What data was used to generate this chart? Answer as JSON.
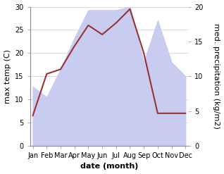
{
  "months": [
    "Jan",
    "Feb",
    "Mar",
    "Apr",
    "May",
    "Jun",
    "Jul",
    "Aug",
    "Sep",
    "Oct",
    "Nov",
    "Dec"
  ],
  "x": [
    0,
    1,
    2,
    3,
    4,
    5,
    6,
    7,
    8,
    9,
    10,
    11
  ],
  "temp_max": [
    6.5,
    15.5,
    16.5,
    21.5,
    26.0,
    24.0,
    26.5,
    29.5,
    20.0,
    7.0,
    7.0,
    7.0
  ],
  "precip": [
    8.5,
    7.0,
    11.0,
    15.5,
    19.5,
    19.5,
    19.5,
    20.0,
    12.0,
    18.0,
    12.0,
    10.0
  ],
  "temp_color": "#993333",
  "precip_fill_color": "#c8ccf0",
  "temp_ylim": [
    0,
    30
  ],
  "precip_ylim": [
    0,
    20
  ],
  "xlabel": "date (month)",
  "ylabel_left": "max temp (C)",
  "ylabel_right": "med. precipitation (kg/m2)",
  "bg_color": "#ffffff",
  "axis_color": "#888888",
  "label_fontsize": 8,
  "tick_fontsize": 7
}
